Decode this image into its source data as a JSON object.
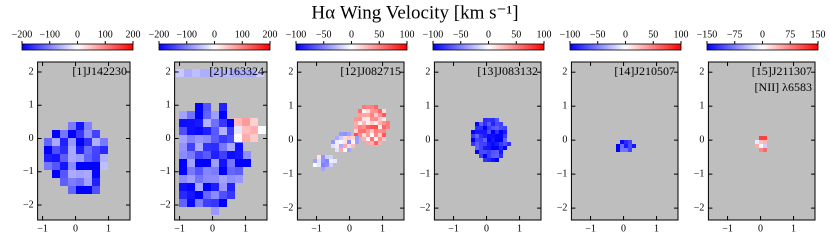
{
  "chart_data": [
    {
      "type": "velocity-map",
      "title": "Hα Wing Velocity [km s⁻¹]",
      "labels": [
        "[1]J142230"
      ],
      "cmap": "bwr",
      "clim": [
        -200,
        200
      ],
      "cticks": [
        {
          "value": -200,
          "label": "−200"
        },
        {
          "value": -100,
          "label": "−100"
        },
        0,
        100,
        200
      ],
      "xlim": [
        -1.15,
        1.65
      ],
      "xticks": [
        {
          "value": -1,
          "label": "−1"
        },
        0,
        1
      ],
      "ylim": [
        -2.45,
        2.3
      ],
      "yticks": [
        {
          "value": -2,
          "label": "−2"
        },
        {
          "value": -1,
          "label": "−1"
        },
        0,
        1,
        2
      ]
    },
    {
      "type": "velocity-map",
      "labels": [
        "[2]J163324"
      ],
      "cmap": "bwr",
      "clim": [
        -200,
        200
      ],
      "cticks": [
        {
          "value": -200,
          "label": "−200"
        },
        {
          "value": -100,
          "label": "−100"
        },
        0,
        100,
        200
      ],
      "xlim": [
        -1.15,
        1.65
      ],
      "xticks": [
        {
          "value": -1,
          "label": "−1"
        },
        0,
        1
      ],
      "ylim": [
        -2.45,
        2.3
      ],
      "yticks": [
        {
          "value": -2,
          "label": "−2"
        },
        {
          "value": -1,
          "label": "−1"
        },
        0,
        1,
        2
      ]
    },
    {
      "type": "velocity-map",
      "labels": [
        "[12]J082715"
      ],
      "cmap": "bwr",
      "clim": [
        -100,
        100
      ],
      "cticks": [
        {
          "value": -100,
          "label": "−100"
        },
        {
          "value": -50,
          "label": "−50"
        },
        0,
        50,
        100
      ],
      "xlim": [
        -1.58,
        1.65
      ],
      "xticks": [
        {
          "value": -1,
          "label": "−1"
        },
        0,
        1
      ],
      "ylim": [
        -2.35,
        2.3
      ],
      "yticks": [
        {
          "value": -2,
          "label": "−2"
        },
        {
          "value": -1,
          "label": "−1"
        },
        0,
        1,
        2
      ]
    },
    {
      "type": "velocity-map",
      "labels": [
        "[13]J083132"
      ],
      "cmap": "bwr",
      "clim": [
        -100,
        100
      ],
      "cticks": [
        {
          "value": -100,
          "label": "−100"
        },
        {
          "value": -50,
          "label": "−50"
        },
        0,
        50,
        100
      ],
      "xlim": [
        -1.58,
        1.65
      ],
      "xticks": [
        {
          "value": -1,
          "label": "−1"
        },
        0,
        1
      ],
      "ylim": [
        -2.35,
        2.3
      ],
      "yticks": [
        {
          "value": -2,
          "label": "−2"
        },
        {
          "value": -1,
          "label": "−1"
        },
        0,
        1,
        2
      ]
    },
    {
      "type": "velocity-map",
      "labels": [
        "[14]J210507"
      ],
      "cmap": "bwr",
      "clim": [
        -100,
        100
      ],
      "cticks": [
        {
          "value": -100,
          "label": "−100"
        },
        {
          "value": -50,
          "label": "−50"
        },
        0,
        50,
        100
      ],
      "xlim": [
        -1.58,
        1.65
      ],
      "xticks": [
        {
          "value": -1,
          "label": "−1"
        },
        0,
        1
      ],
      "ylim": [
        -2.35,
        2.3
      ],
      "yticks": [
        {
          "value": -2,
          "label": "−2"
        },
        {
          "value": -1,
          "label": "−1"
        },
        0,
        1,
        2
      ]
    },
    {
      "type": "velocity-map",
      "labels": [
        "[15]J211307",
        "[NII] λ6583"
      ],
      "cmap": "bwr",
      "clim": [
        -150,
        150
      ],
      "cticks": [
        {
          "value": -150,
          "label": "−150"
        },
        {
          "value": -75,
          "label": "−75"
        },
        0,
        75,
        150
      ],
      "xlim": [
        -1.58,
        1.65
      ],
      "xticks": [
        {
          "value": -1,
          "label": "−1"
        },
        0,
        1
      ],
      "ylim": [
        -2.35,
        2.3
      ],
      "yticks": [
        {
          "value": -2,
          "label": "−2"
        },
        {
          "value": -1,
          "label": "−1"
        },
        0,
        1,
        2
      ]
    }
  ]
}
